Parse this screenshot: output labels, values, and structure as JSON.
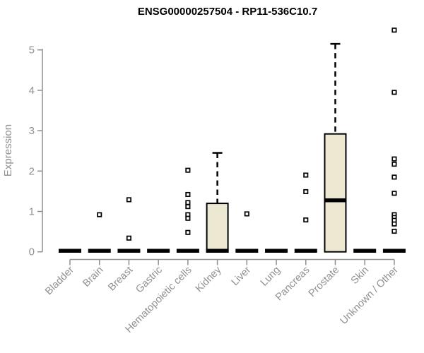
{
  "chart_data": {
    "type": "box",
    "title": "ENSG00000257504 - RP11-536C10.7",
    "ylabel": "Expression",
    "xlabel": "",
    "ylim": [
      0,
      5.6
    ],
    "yticks": [
      0,
      1,
      2,
      3,
      4,
      5
    ],
    "grid": false,
    "legend": "none",
    "categories": [
      "Bladder",
      "Brain",
      "Breast",
      "Gastric",
      "Hematopoietic cells",
      "Kidney",
      "Liver",
      "Lung",
      "Pancreas",
      "Prostate",
      "Skin",
      "Unknown / Other"
    ],
    "boxes": [
      {
        "category": "Bladder",
        "low": 0,
        "q1": 0,
        "median": 0,
        "q3": 0,
        "high": 0,
        "outliers": []
      },
      {
        "category": "Brain",
        "low": 0,
        "q1": 0,
        "median": 0,
        "q3": 0,
        "high": 0,
        "outliers": [
          0.92
        ]
      },
      {
        "category": "Breast",
        "low": 0,
        "q1": 0,
        "median": 0,
        "q3": 0,
        "high": 0,
        "outliers": [
          1.29,
          0.34
        ]
      },
      {
        "category": "Gastric",
        "low": 0,
        "q1": 0,
        "median": 0,
        "q3": 0,
        "high": 0,
        "outliers": []
      },
      {
        "category": "Hematopoietic cells",
        "low": 0,
        "q1": 0,
        "median": 0,
        "q3": 0,
        "high": 0,
        "outliers": [
          2.02,
          1.42,
          1.22,
          1.12,
          0.92,
          0.83,
          0.48
        ]
      },
      {
        "category": "Kidney",
        "low": 0,
        "q1": 0,
        "median": 0,
        "q3": 1.2,
        "high": 2.45,
        "outliers": []
      },
      {
        "category": "Liver",
        "low": 0,
        "q1": 0,
        "median": 0,
        "q3": 0,
        "high": 0,
        "outliers": [
          0.94
        ]
      },
      {
        "category": "Lung",
        "low": 0,
        "q1": 0,
        "median": 0,
        "q3": 0,
        "high": 0,
        "outliers": []
      },
      {
        "category": "Pancreas",
        "low": 0,
        "q1": 0,
        "median": 0,
        "q3": 0,
        "high": 0,
        "outliers": [
          1.9,
          1.49,
          0.79
        ]
      },
      {
        "category": "Prostate",
        "low": 0,
        "q1": 0,
        "median": 1.25,
        "q3": 2.92,
        "high": 5.15,
        "outliers": []
      },
      {
        "category": "Skin",
        "low": 0,
        "q1": 0,
        "median": 0,
        "q3": 0,
        "high": 0,
        "outliers": []
      },
      {
        "category": "Unknown / Other",
        "low": 0,
        "q1": 0,
        "median": 0,
        "q3": 0,
        "high": 0,
        "outliers": [
          5.49,
          3.95,
          2.3,
          2.17,
          1.85,
          1.45,
          0.92,
          0.85,
          0.78,
          0.69,
          0.51
        ]
      }
    ],
    "colors": {
      "box_fill": "#EDE8D2",
      "box_stroke": "#000000",
      "median": "#000000",
      "axis": "#8F8F8F",
      "tick_label": "#909090",
      "title": "#000000",
      "outlier_stroke": "#000000",
      "outlier_fill": "#FFFFFF"
    }
  }
}
